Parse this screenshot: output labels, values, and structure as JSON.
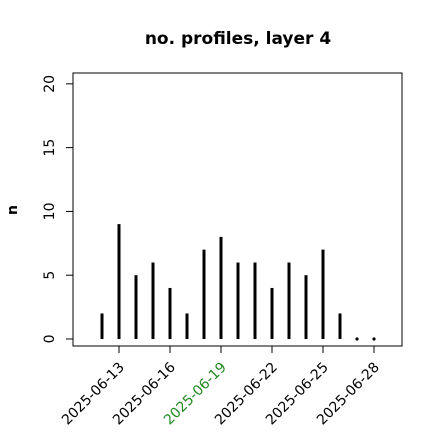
{
  "chart_data": {
    "type": "histogram-lines",
    "title": "no. profiles, layer 4",
    "ylabel": "n",
    "x": [
      "2025-06-12",
      "2025-06-13",
      "2025-06-14",
      "2025-06-15",
      "2025-06-16",
      "2025-06-17",
      "2025-06-18",
      "2025-06-19",
      "2025-06-20",
      "2025-06-21",
      "2025-06-22",
      "2025-06-23",
      "2025-06-24",
      "2025-06-25",
      "2025-06-26",
      "2025-06-27",
      "2025-06-28"
    ],
    "values": [
      2,
      9,
      5,
      6,
      4,
      2,
      7,
      8,
      6,
      6,
      4,
      6,
      5,
      7,
      2,
      0,
      0
    ],
    "color": "#000000",
    "xlim": [
      "2025-06-10",
      "2025-06-30"
    ],
    "xticks": [
      "2025-06-13",
      "2025-06-16",
      "2025-06-19",
      "2025-06-22",
      "2025-06-25",
      "2025-06-28"
    ],
    "xtick_colors": [
      "#000000",
      "#000000",
      "#228b22",
      "#000000",
      "#000000",
      "#000000"
    ],
    "ylim": [
      -0.55,
      20.85
    ],
    "yticks": [
      0,
      5,
      10,
      15,
      20
    ]
  }
}
